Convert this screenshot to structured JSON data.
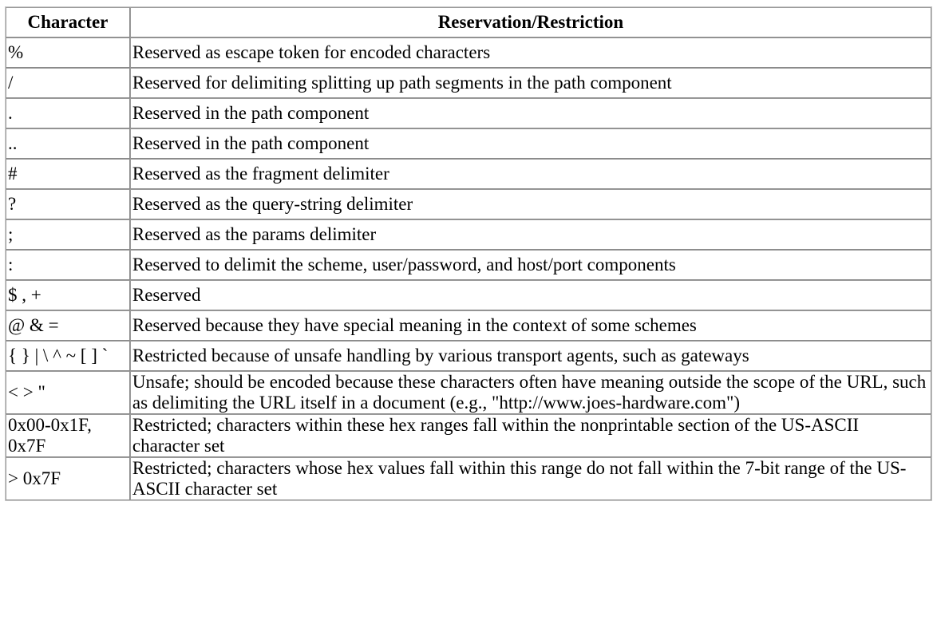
{
  "table": {
    "headers": [
      "Character",
      "Reservation/Restriction"
    ],
    "rows": [
      {
        "char": "%",
        "desc": "Reserved as escape token for encoded characters"
      },
      {
        "char": "/",
        "desc": "Reserved for delimiting splitting up path segments in the path component"
      },
      {
        "char": ".",
        "desc": "Reserved in the path component"
      },
      {
        "char": "..",
        "desc": "Reserved in the path component"
      },
      {
        "char": "#",
        "desc": "Reserved as the fragment delimiter"
      },
      {
        "char": "?",
        "desc": "Reserved as the query-string delimiter"
      },
      {
        "char": ";",
        "desc": "Reserved as the params delimiter"
      },
      {
        "char": ":",
        "desc": "Reserved to delimit the scheme, user/password, and host/port components"
      },
      {
        "char": "$ , +",
        "desc": "Reserved"
      },
      {
        "char": "@ & =",
        "desc": "Reserved because they have special meaning in the context of some schemes"
      },
      {
        "char": "{ } | \\ ^ ~ [ ] `",
        "desc": "Restricted because of unsafe handling by various transport agents, such as gateways"
      },
      {
        "char": "< > \"",
        "desc": "Unsafe; should be encoded because these characters often have meaning outside the scope of the URL, such as delimiting the URL itself in a document (e.g., \"http://www.joes-hardware.com\")"
      },
      {
        "char": "0x00-0x1F, 0x7F",
        "desc": "Restricted; characters within these hex ranges fall within the nonprintable section of the US-ASCII character set"
      },
      {
        "char": "> 0x7F",
        "desc": "Restricted; characters whose hex values fall within this range do not fall within the 7-bit range of the US-ASCII character set"
      }
    ]
  }
}
